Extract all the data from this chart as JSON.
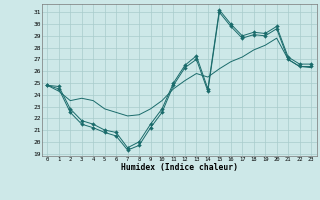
{
  "background_color": "#cde8e8",
  "grid_color": "#a8cccc",
  "line_color": "#1a6b6b",
  "xlabel": "Humidex (Indice chaleur)",
  "xlim": [
    -0.5,
    23.5
  ],
  "ylim": [
    18.8,
    31.7
  ],
  "xticks": [
    0,
    1,
    2,
    3,
    4,
    5,
    6,
    7,
    8,
    9,
    10,
    11,
    12,
    13,
    14,
    15,
    16,
    17,
    18,
    19,
    20,
    21,
    22,
    23
  ],
  "yticks": [
    19,
    20,
    21,
    22,
    23,
    24,
    25,
    26,
    27,
    28,
    29,
    30,
    31
  ],
  "curve1_x": [
    0,
    1,
    2,
    3,
    4,
    5,
    6,
    7,
    8,
    9,
    10,
    11,
    12,
    13,
    14,
    15,
    16,
    17,
    18,
    19,
    20,
    21,
    22,
    23
  ],
  "curve1_y": [
    24.8,
    24.7,
    22.8,
    21.8,
    21.5,
    21.0,
    20.8,
    19.5,
    20.0,
    21.5,
    22.8,
    25.0,
    26.5,
    27.3,
    24.5,
    31.2,
    30.0,
    29.0,
    29.3,
    29.2,
    29.8,
    27.2,
    26.6,
    26.6
  ],
  "curve2_x": [
    0,
    1,
    2,
    3,
    4,
    5,
    6,
    7,
    8,
    9,
    10,
    11,
    12,
    13,
    14,
    15,
    16,
    17,
    18,
    19,
    20,
    21,
    22,
    23
  ],
  "curve2_y": [
    24.8,
    24.5,
    22.5,
    21.5,
    21.2,
    20.8,
    20.5,
    19.3,
    19.7,
    21.2,
    22.5,
    24.8,
    26.3,
    27.0,
    24.3,
    31.0,
    29.8,
    28.8,
    29.1,
    29.0,
    29.6,
    27.0,
    26.4,
    26.4
  ],
  "curve3_x": [
    0,
    1,
    2,
    3,
    4,
    5,
    6,
    7,
    8,
    9,
    10,
    11,
    12,
    13,
    14,
    15,
    16,
    17,
    18,
    19,
    20,
    21,
    22,
    23
  ],
  "curve3_y": [
    24.8,
    24.3,
    23.5,
    23.7,
    23.5,
    22.8,
    22.5,
    22.2,
    22.3,
    22.8,
    23.5,
    24.5,
    25.2,
    25.8,
    25.5,
    26.2,
    26.8,
    27.2,
    27.8,
    28.2,
    28.8,
    27.0,
    26.4,
    26.3
  ]
}
